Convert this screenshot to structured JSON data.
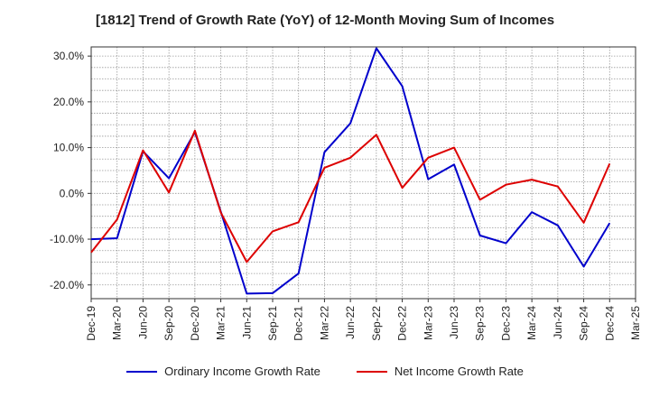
{
  "chart_data": {
    "type": "line",
    "title": "[1812]  Trend of Growth Rate (YoY) of 12-Month Moving Sum of Incomes",
    "xlabel": "",
    "ylabel": "",
    "categories": [
      "Dec-19",
      "Mar-20",
      "Jun-20",
      "Sep-20",
      "Dec-20",
      "Mar-21",
      "Jun-21",
      "Sep-21",
      "Dec-21",
      "Mar-22",
      "Jun-22",
      "Sep-22",
      "Dec-22",
      "Mar-23",
      "Jun-23",
      "Sep-23",
      "Dec-23",
      "Mar-24",
      "Jun-24",
      "Sep-24",
      "Dec-24",
      "Mar-25"
    ],
    "ylim": [
      -23,
      32
    ],
    "yticks": [
      30,
      20,
      10,
      0,
      -10,
      -20
    ],
    "ytick_labels": [
      "30.0%",
      "20.0%",
      "10.0%",
      "0.0%",
      "-10.0%",
      "-20.0%"
    ],
    "grid": true,
    "legend_position": "bottom",
    "series": [
      {
        "name": "Ordinary Income Growth Rate",
        "color": "#0000cc",
        "values": [
          -10.0,
          -9.8,
          9.2,
          3.3,
          13.4,
          -4.0,
          -21.9,
          -21.8,
          -17.5,
          9.0,
          15.3,
          31.7,
          23.4,
          3.1,
          6.3,
          -9.2,
          -10.9,
          -4.1,
          -7.0,
          -16.0,
          -6.5,
          null
        ]
      },
      {
        "name": "Net Income Growth Rate",
        "color": "#dd0000",
        "values": [
          -12.9,
          -5.7,
          9.4,
          0.2,
          13.7,
          -4.2,
          -15.0,
          -8.3,
          -6.3,
          5.6,
          7.8,
          12.8,
          1.2,
          7.8,
          10.0,
          -1.4,
          1.9,
          3.0,
          1.5,
          -6.4,
          6.5,
          null
        ]
      }
    ]
  }
}
